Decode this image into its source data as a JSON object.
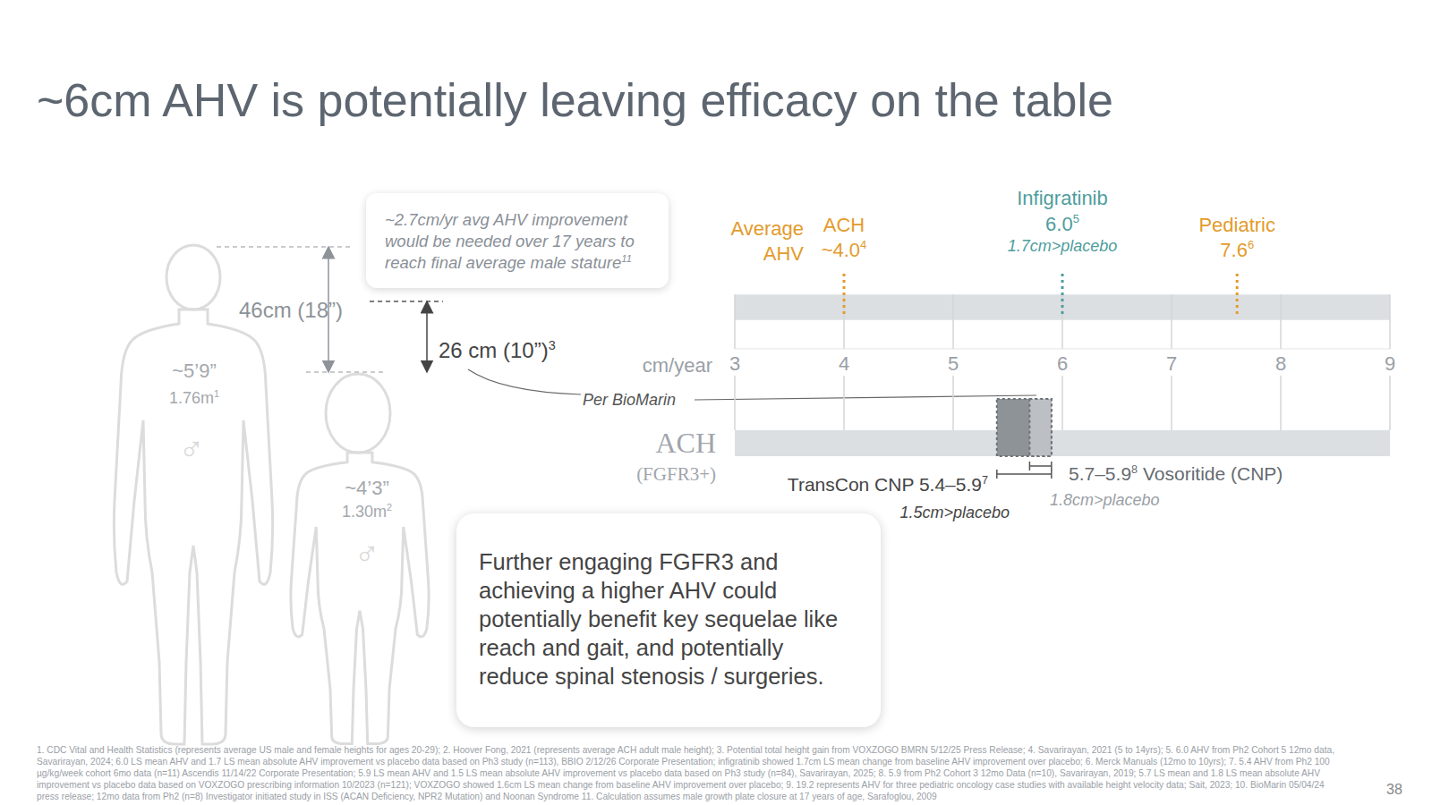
{
  "title": "~6cm AHV is potentially leaving efficacy on the table",
  "chart_data": {
    "type": "range_plot",
    "x_label": "cm/year",
    "xlim": [
      3,
      9
    ],
    "xticks": [
      3,
      4,
      5,
      6,
      7,
      8,
      9
    ],
    "rows": [
      {
        "label": "Average AHV",
        "color": "#e39b2c",
        "markers": [
          {
            "name": "ACH",
            "value": 4.0,
            "value_label": "~4.0",
            "ref": "4",
            "color": "#e39b2c"
          },
          {
            "name": "Infigratinib",
            "value": 6.0,
            "value_label": "6.0",
            "ref": "5",
            "note": "1.7cm>placebo",
            "color": "#4f9d9d"
          },
          {
            "name": "Pediatric",
            "value": 7.6,
            "value_label": "7.6",
            "ref": "6",
            "color": "#e39b2c"
          }
        ]
      },
      {
        "label": "ACH",
        "sublabel": "(FGFR3+)",
        "ranges": [
          {
            "name": "TransCon CNP",
            "low": 5.4,
            "high": 5.9,
            "value_label": "5.4–5.9",
            "ref": "7",
            "note": "1.5cm>placebo",
            "color": "#8e9398"
          },
          {
            "name": "Vosoritide (CNP)",
            "low": 5.7,
            "high": 5.9,
            "value_label": "5.7–5.9",
            "ref": "8",
            "note": "1.8cm>placebo",
            "color": "#bcc0c4"
          }
        ]
      }
    ],
    "annotation": "Per BioMarin"
  },
  "figure": {
    "callout": {
      "lines": [
        "~2.7cm/yr avg AHV improvement",
        "would be needed over 17 years to",
        "reach final average male stature"
      ],
      "ref": "11"
    },
    "gap_total": "46cm (18”)",
    "gap_gain": {
      "text": "26 cm (10”)",
      "ref": "3"
    },
    "adult": {
      "height": "~5’9”",
      "metric": "1.76m",
      "ref": "1",
      "symbol": "♂"
    },
    "child": {
      "height": "~4’3”",
      "metric": "1.30m",
      "ref": "2",
      "symbol": "♂"
    }
  },
  "message": [
    "Further engaging FGFR3 and",
    "achieving a higher AHV could",
    "potentially benefit key sequelae like",
    "reach and gait, and potentially",
    "reduce spinal stenosis / surgeries."
  ],
  "footnotes": "1. CDC Vital and Health Statistics (represents average US male and female heights for ages 20-29); 2. Hoover Fong, 2021 (represents average ACH adult male height); 3. Potential total height gain from VOXZOGO BMRN 5/12/25 Press Release; 4. Savarirayan, 2021 (5 to 14yrs); 5. 6.0 AHV from Ph2 Cohort 5 12mo data, Savarirayan, 2024; 6.0 LS mean AHV and 1.7 LS mean absolute AHV improvement vs placebo data based on Ph3 study (n=113), BBIO 2/12/26 Corporate Presentation; infigratinib showed 1.7cm LS mean change from baseline AHV improvement over placebo; 6. Merck Manuals (12mo to 10yrs); 7. 5.4 AHV from Ph2 100 µg/kg/week cohort 6mo data (n=11) Ascendis 11/14/22 Corporate Presentation; 5.9 LS mean AHV and 1.5 LS mean absolute AHV improvement vs placebo data based on Ph3 study (n=84), Savarirayan, 2025; 8. 5.9 from Ph2 Cohort 3 12mo Data (n=10), Savarirayan, 2019; 5.7 LS mean and 1.8 LS mean absolute AHV improvement vs placebo data based on VOXZOGO prescribing information 10/2023 (n=121); VOXZOGO showed 1.6cm LS mean change from baseline AHV improvement over placebo; 9. 19.2 represents AHV for three pediatric oncology case studies with available height velocity data; Sait, 2023; 10. BioMarin 05/04/24 press release; 12mo data from Ph2 (n=8) Investigator initiated study in ISS (ACAN Deficiency, NPR2 Mutation) and Noonan Syndrome 11. Calculation assumes male growth plate closure at 17 years of age, Sarafoglou, 2009",
  "page": 38
}
